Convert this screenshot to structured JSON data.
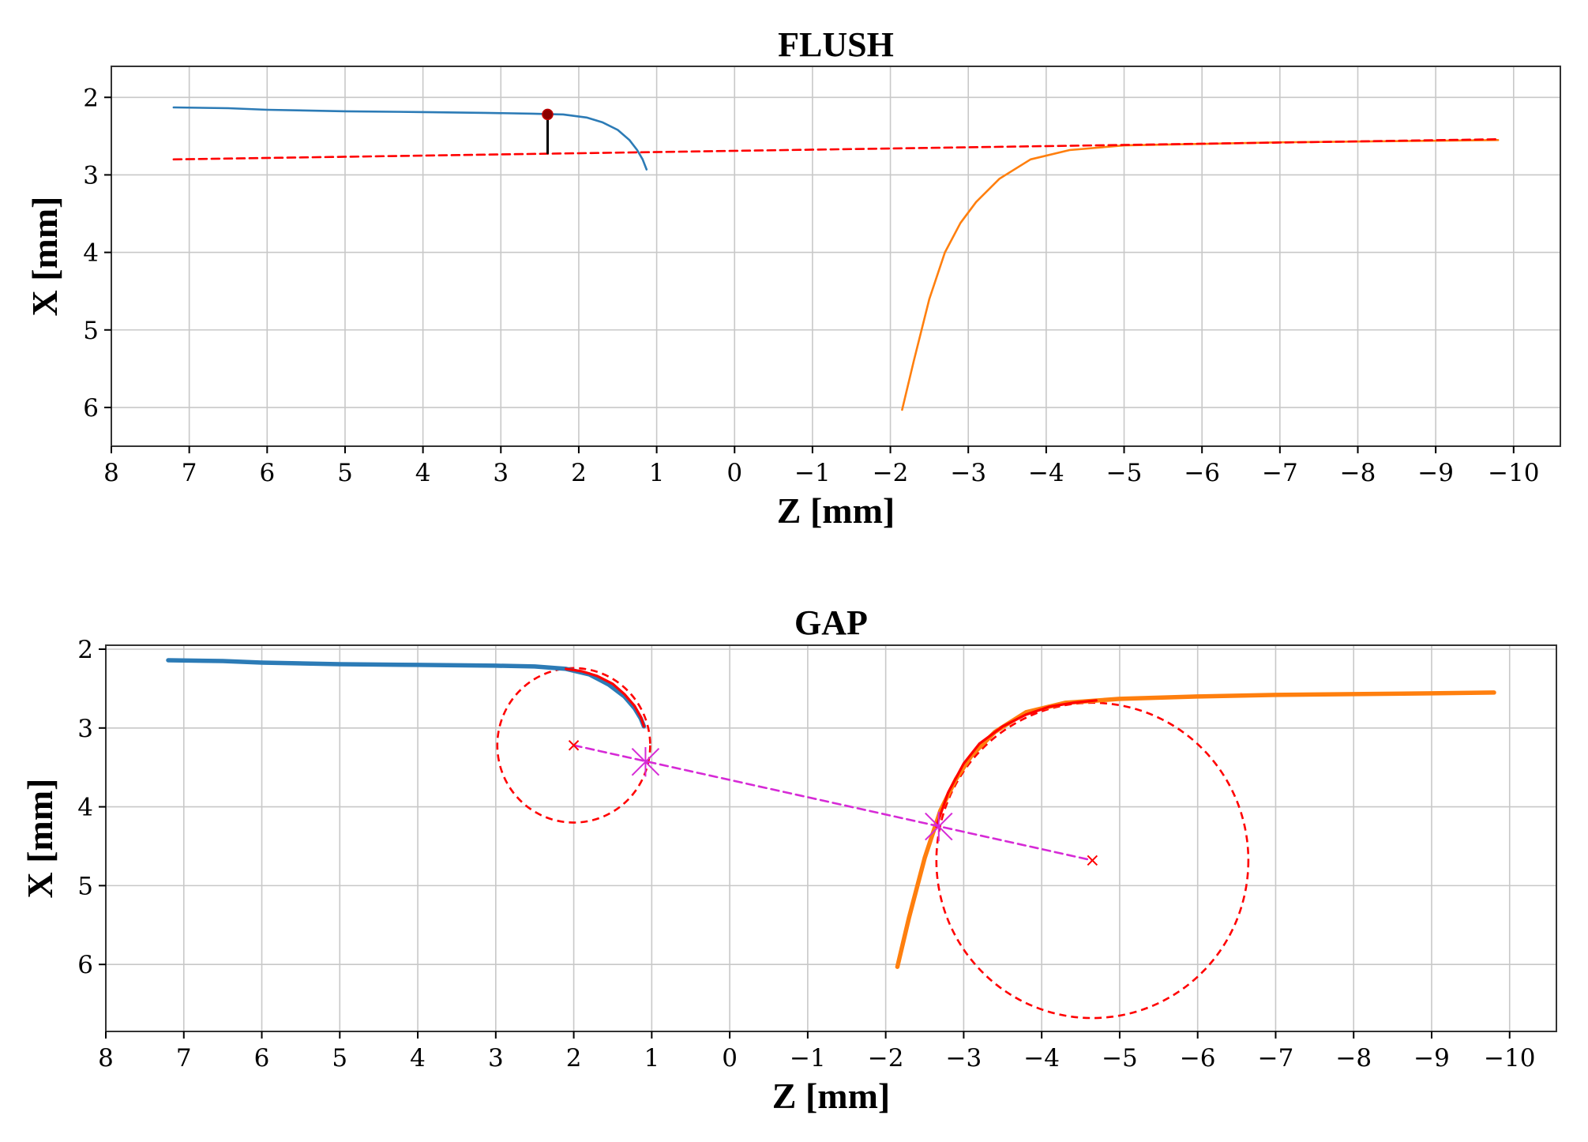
{
  "colors": {
    "profile_left": "#2c7bb6",
    "profile_right": "#ff7f0e",
    "fit_red": "#ff0000",
    "center_line": "#d62ad6",
    "marker_dark": "#8b0000"
  },
  "chart_data": [
    {
      "type": "line",
      "title": "FLUSH",
      "xlabel": "Z [mm]",
      "ylabel": "X [mm]",
      "xlim": [
        8,
        -10.6
      ],
      "ylim": [
        6.5,
        1.6
      ],
      "x_ticks": [
        8,
        7,
        6,
        5,
        4,
        3,
        2,
        1,
        0,
        -1,
        -2,
        -3,
        -4,
        -5,
        -6,
        -7,
        -8,
        -9,
        -10
      ],
      "y_ticks": [
        2,
        3,
        4,
        5,
        6
      ],
      "grid": true,
      "series": [
        {
          "color": "#2c7bb6",
          "style": "solid",
          "x": [
            7.2,
            6.5,
            6.0,
            5.0,
            4.0,
            3.2,
            2.6,
            2.2,
            1.9,
            1.7,
            1.5,
            1.35,
            1.25,
            1.18,
            1.13
          ],
          "y": [
            2.13,
            2.14,
            2.16,
            2.18,
            2.19,
            2.2,
            2.21,
            2.22,
            2.26,
            2.32,
            2.42,
            2.55,
            2.68,
            2.8,
            2.93
          ]
        },
        {
          "color": "#ff7f0e",
          "style": "solid",
          "x": [
            -2.15,
            -2.3,
            -2.5,
            -2.7,
            -2.9,
            -3.1,
            -3.4,
            -3.8,
            -4.3,
            -5.0,
            -6.0,
            -7.0,
            -8.0,
            -9.0,
            -9.8
          ],
          "y": [
            6.03,
            5.4,
            4.6,
            4.0,
            3.62,
            3.35,
            3.05,
            2.8,
            2.68,
            2.62,
            2.6,
            2.58,
            2.57,
            2.56,
            2.55
          ]
        },
        {
          "color": "#ff0000",
          "style": "dashed",
          "x": [
            7.2,
            -9.8
          ],
          "y": [
            2.8,
            2.54
          ]
        },
        {
          "color": "#000000",
          "style": "solid",
          "x": [
            2.4,
            2.4
          ],
          "y": [
            2.22,
            2.72
          ]
        }
      ],
      "points": [
        {
          "x": 2.4,
          "y": 2.22,
          "marker": "dot",
          "color": "#8b0000"
        }
      ]
    },
    {
      "type": "line",
      "title": "GAP",
      "xlabel": "Z [mm]",
      "ylabel": "X [mm]",
      "xlim": [
        8,
        -10.6
      ],
      "ylim": [
        6.85,
        1.95
      ],
      "x_ticks": [
        8,
        7,
        6,
        5,
        4,
        3,
        2,
        1,
        0,
        -1,
        -2,
        -3,
        -4,
        -5,
        -6,
        -7,
        -8,
        -9,
        -10
      ],
      "y_ticks": [
        2,
        3,
        4,
        5,
        6
      ],
      "grid": true,
      "series": [
        {
          "color": "#2c7bb6",
          "style": "solid-thick",
          "x": [
            7.2,
            6.5,
            6.0,
            5.0,
            4.0,
            3.0,
            2.5,
            2.1,
            1.8,
            1.55,
            1.35,
            1.22,
            1.14,
            1.1
          ],
          "y": [
            2.14,
            2.15,
            2.17,
            2.19,
            2.2,
            2.21,
            2.22,
            2.25,
            2.32,
            2.45,
            2.6,
            2.75,
            2.88,
            2.98
          ]
        },
        {
          "color": "#ff7f0e",
          "style": "solid-thick",
          "x": [
            -2.15,
            -2.3,
            -2.5,
            -2.7,
            -2.9,
            -3.1,
            -3.4,
            -3.8,
            -4.3,
            -5.0,
            -6.0,
            -7.0,
            -8.0,
            -9.0,
            -9.8
          ],
          "y": [
            6.03,
            5.4,
            4.65,
            4.05,
            3.65,
            3.35,
            3.05,
            2.8,
            2.68,
            2.63,
            2.6,
            2.58,
            2.57,
            2.56,
            2.55
          ]
        },
        {
          "color": "#ff0000",
          "style": "solid",
          "x": [
            2.1,
            1.9,
            1.7,
            1.5,
            1.35,
            1.22,
            1.14,
            1.1
          ],
          "y": [
            2.25,
            2.28,
            2.34,
            2.44,
            2.57,
            2.72,
            2.86,
            2.98
          ]
        },
        {
          "color": "#ff0000",
          "style": "solid",
          "x": [
            -2.65,
            -2.8,
            -3.0,
            -3.2,
            -3.5,
            -3.8,
            -4.1,
            -4.4,
            -4.7
          ],
          "y": [
            4.25,
            3.82,
            3.45,
            3.2,
            2.98,
            2.83,
            2.73,
            2.68,
            2.65
          ]
        },
        {
          "color": "#d62ad6",
          "style": "dashed",
          "x": [
            2.0,
            -4.65
          ],
          "y": [
            3.22,
            4.68
          ]
        }
      ],
      "circles": [
        {
          "cx": 2.0,
          "cy": 3.22,
          "r": 0.98,
          "color": "#ff0000",
          "style": "dashed"
        },
        {
          "cx": -4.65,
          "cy": 4.68,
          "r": 2.0,
          "color": "#ff0000",
          "style": "dashed"
        }
      ],
      "points": [
        {
          "x": 2.0,
          "y": 3.22,
          "marker": "x",
          "color": "#ff0000"
        },
        {
          "x": -4.65,
          "y": 4.68,
          "marker": "x",
          "color": "#ff0000"
        },
        {
          "x": 1.08,
          "y": 3.43,
          "marker": "asterisk",
          "color": "#d62ad6"
        },
        {
          "x": -2.68,
          "y": 4.25,
          "marker": "asterisk",
          "color": "#d62ad6"
        }
      ]
    }
  ]
}
